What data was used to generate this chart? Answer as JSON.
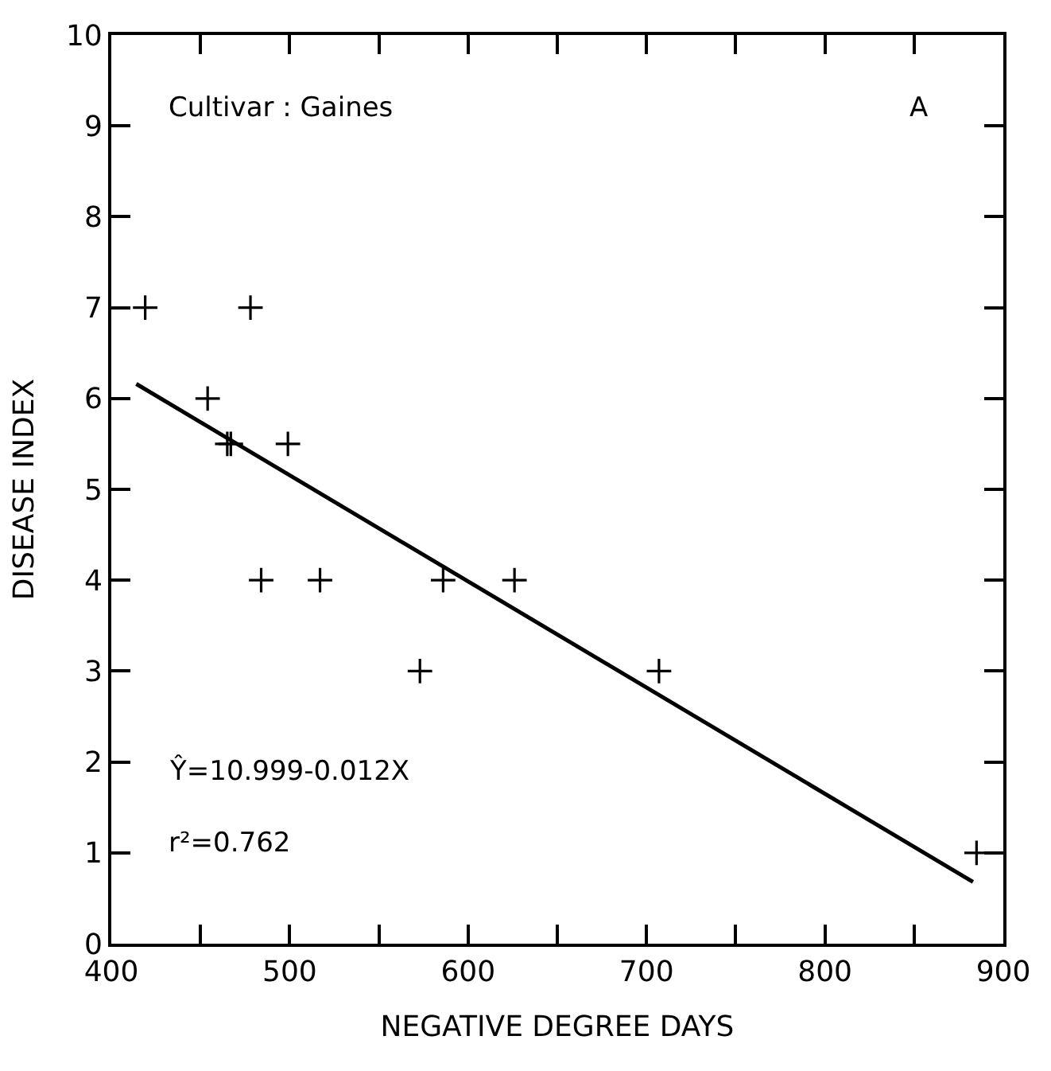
{
  "chart_data": {
    "type": "scatter",
    "xlabel": "NEGATIVE DEGREE DAYS",
    "ylabel": "DISEASE INDEX",
    "annotations": [
      "Cultivar : Gaines",
      "A",
      "Ŷ=10.999-0.012X",
      "r²=0.762"
    ],
    "xlim": [
      400,
      900
    ],
    "ylim": [
      0,
      10
    ],
    "xticks": [
      400,
      {
        "value": 450,
        "label": null
      },
      500,
      {
        "value": 550,
        "label": null
      },
      600,
      {
        "value": 650,
        "label": null
      },
      700,
      {
        "value": 750,
        "label": null
      },
      800,
      {
        "value": 850,
        "label": null
      },
      900
    ],
    "yticks": [
      0,
      1,
      2,
      3,
      4,
      5,
      6,
      7,
      8,
      9,
      10
    ],
    "marker": "cross",
    "series": [
      {
        "color": "#000000",
        "x": [
          419,
          478,
          454,
          465,
          467,
          499,
          484,
          517,
          586,
          626,
          573,
          707,
          885
        ],
        "values": [
          7,
          7,
          6,
          5.5,
          5.5,
          5.5,
          4,
          4,
          4,
          4,
          3,
          3,
          1
        ]
      },
      {
        "type": "line",
        "color": "#000000",
        "marker": "none",
        "line_style": "solid",
        "x": [
          414,
          883
        ],
        "values": [
          6.16,
          0.68
        ]
      }
    ]
  }
}
